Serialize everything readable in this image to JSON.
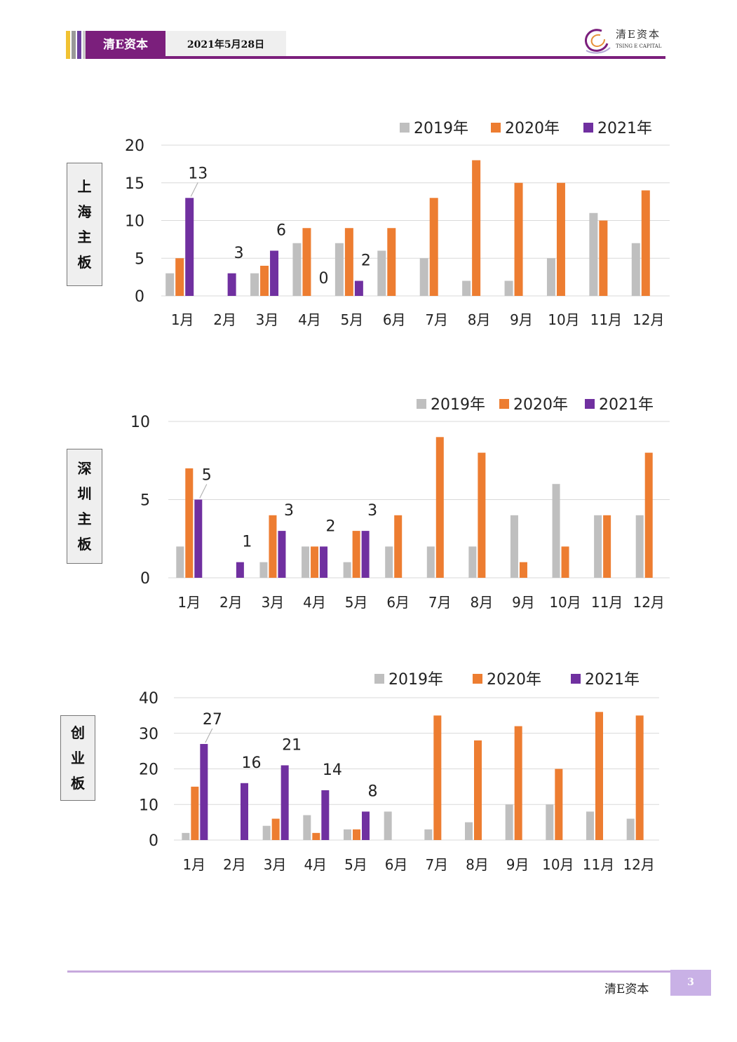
{
  "header": {
    "brand": "清E资本",
    "date": "2021年5月28日",
    "logo_cn": "清E资本",
    "logo_en": "TSING E CAPITAL",
    "colors": {
      "primary": "#7b1f7c",
      "date_bg": "#efefef",
      "stripe_gold": "#f1c232",
      "stripe_gray": "#999999",
      "stripe_purple": "#6b3f9e"
    }
  },
  "footer": {
    "brand": "清E资本",
    "page": "3"
  },
  "chart_data": [
    {
      "type": "bar",
      "side_label": [
        "上",
        "海",
        "主",
        "板"
      ],
      "categories": [
        "1月",
        "2月",
        "3月",
        "4月",
        "5月",
        "6月",
        "7月",
        "8月",
        "9月",
        "10月",
        "11月",
        "12月"
      ],
      "series": [
        {
          "name": "2019年",
          "color": "#bfbfbf",
          "values": [
            3,
            null,
            3,
            7,
            7,
            6,
            5,
            2,
            2,
            5,
            11,
            7
          ]
        },
        {
          "name": "2020年",
          "color": "#ed7d31",
          "values": [
            5,
            null,
            4,
            9,
            9,
            9,
            13,
            18,
            15,
            15,
            10,
            14
          ]
        },
        {
          "name": "2021年",
          "color": "#7030a0",
          "values": [
            13,
            3,
            6,
            0,
            2,
            null,
            null,
            null,
            null,
            null,
            null,
            null
          ]
        }
      ],
      "data_labels": {
        "series": "2021年",
        "values": [
          "13",
          "3",
          "6",
          "0",
          "2"
        ]
      },
      "ylim": [
        0,
        20
      ],
      "yticks": [
        0,
        5,
        10,
        15,
        20
      ],
      "legend": "top-right",
      "grid": true
    },
    {
      "type": "bar",
      "side_label": [
        "深",
        "圳",
        "主",
        "板"
      ],
      "categories": [
        "1月",
        "2月",
        "3月",
        "4月",
        "5月",
        "6月",
        "7月",
        "8月",
        "9月",
        "10月",
        "11月",
        "12月"
      ],
      "series": [
        {
          "name": "2019年",
          "color": "#bfbfbf",
          "values": [
            2,
            null,
            1,
            2,
            1,
            2,
            2,
            2,
            4,
            6,
            4,
            4
          ]
        },
        {
          "name": "2020年",
          "color": "#ed7d31",
          "values": [
            7,
            null,
            4,
            2,
            3,
            4,
            9,
            8,
            1,
            2,
            4,
            8
          ]
        },
        {
          "name": "2021年",
          "color": "#7030a0",
          "values": [
            5,
            1,
            3,
            2,
            3,
            null,
            null,
            null,
            null,
            null,
            null,
            null
          ]
        }
      ],
      "data_labels": {
        "series": "2021年",
        "values": [
          "5",
          "1",
          "3",
          "2",
          "3"
        ]
      },
      "ylim": [
        0,
        10
      ],
      "yticks": [
        0,
        5,
        10
      ],
      "legend": "top-right",
      "grid": true
    },
    {
      "type": "bar",
      "side_label": [
        "创",
        "业",
        "板"
      ],
      "categories": [
        "1月",
        "2月",
        "3月",
        "4月",
        "5月",
        "6月",
        "7月",
        "8月",
        "9月",
        "10月",
        "11月",
        "12月"
      ],
      "series": [
        {
          "name": "2019年",
          "color": "#bfbfbf",
          "values": [
            2,
            null,
            4,
            7,
            3,
            8,
            3,
            5,
            10,
            10,
            8,
            6
          ]
        },
        {
          "name": "2020年",
          "color": "#ed7d31",
          "values": [
            15,
            null,
            6,
            2,
            3,
            null,
            35,
            28,
            32,
            20,
            36,
            35
          ]
        },
        {
          "name": "2021年",
          "color": "#7030a0",
          "values": [
            27,
            16,
            21,
            14,
            8,
            null,
            null,
            null,
            null,
            null,
            null,
            null
          ]
        }
      ],
      "data_labels": {
        "series": "2021年",
        "values": [
          "27",
          "16",
          "21",
          "14",
          "8"
        ]
      },
      "ylim": [
        0,
        40
      ],
      "yticks": [
        0,
        10,
        20,
        30,
        40
      ],
      "legend": "top-right",
      "grid": true
    }
  ]
}
